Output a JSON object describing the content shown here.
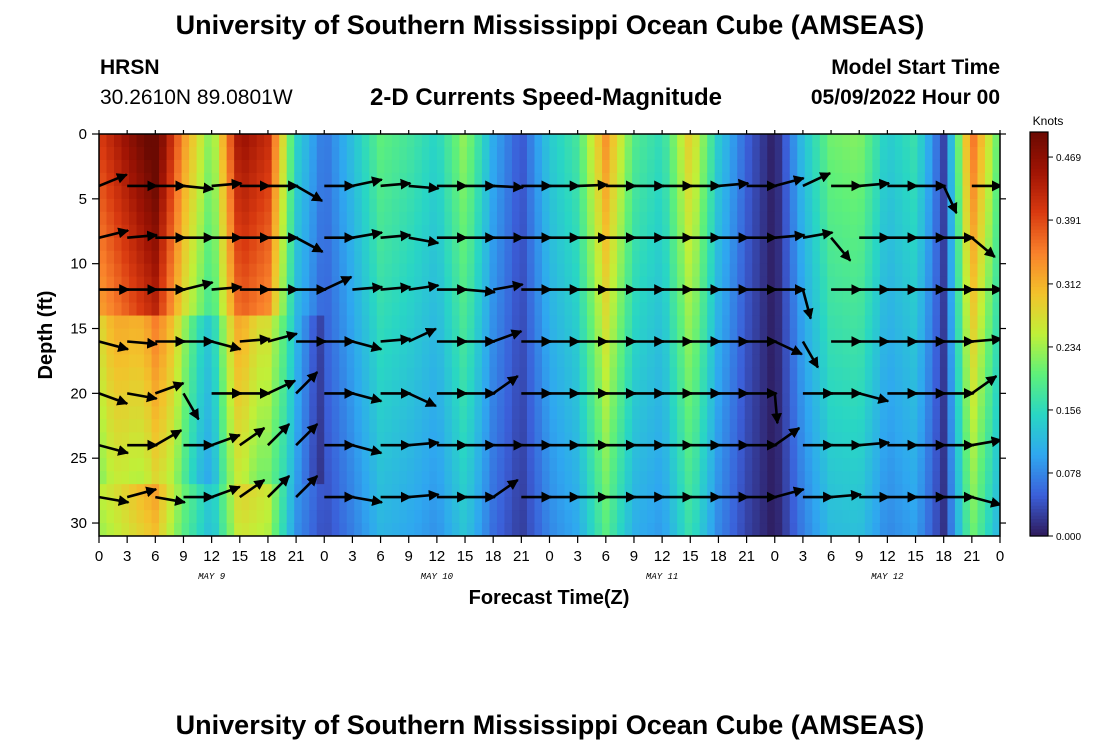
{
  "page": {
    "title": "University of Southern Mississippi Ocean Cube (AMSEAS)",
    "station_name": "HRSN",
    "station_coords": "30.2610N  89.0801W",
    "subtitle": "2-D Currents Speed-Magnitude",
    "model_start_label": "Model Start Time",
    "model_start_value": "05/09/2022 Hour 00",
    "footer_title": "University of Southern Mississippi Ocean Cube (AMSEAS)"
  },
  "chart_data": {
    "type": "heatmap",
    "title": "2-D Currents Speed-Magnitude",
    "xlabel": "Forecast Time(Z)",
    "ylabel": "Depth (ft)",
    "x_range_hours": [
      0,
      96
    ],
    "y_range_ft": [
      0,
      31
    ],
    "x_ticks": [
      {
        "hour": 0,
        "label": "0"
      },
      {
        "hour": 3,
        "label": "3"
      },
      {
        "hour": 6,
        "label": "6"
      },
      {
        "hour": 9,
        "label": "9"
      },
      {
        "hour": 12,
        "label": "12"
      },
      {
        "hour": 15,
        "label": "15"
      },
      {
        "hour": 18,
        "label": "18"
      },
      {
        "hour": 21,
        "label": "21"
      },
      {
        "hour": 24,
        "label": "0"
      },
      {
        "hour": 27,
        "label": "3"
      },
      {
        "hour": 30,
        "label": "6"
      },
      {
        "hour": 33,
        "label": "9"
      },
      {
        "hour": 36,
        "label": "12"
      },
      {
        "hour": 39,
        "label": "15"
      },
      {
        "hour": 42,
        "label": "18"
      },
      {
        "hour": 45,
        "label": "21"
      },
      {
        "hour": 48,
        "label": "0"
      },
      {
        "hour": 51,
        "label": "3"
      },
      {
        "hour": 54,
        "label": "6"
      },
      {
        "hour": 57,
        "label": "9"
      },
      {
        "hour": 60,
        "label": "12"
      },
      {
        "hour": 63,
        "label": "15"
      },
      {
        "hour": 66,
        "label": "18"
      },
      {
        "hour": 69,
        "label": "21"
      },
      {
        "hour": 72,
        "label": "0"
      },
      {
        "hour": 75,
        "label": "3"
      },
      {
        "hour": 78,
        "label": "6"
      },
      {
        "hour": 81,
        "label": "9"
      },
      {
        "hour": 84,
        "label": "12"
      },
      {
        "hour": 87,
        "label": "15"
      },
      {
        "hour": 90,
        "label": "18"
      },
      {
        "hour": 93,
        "label": "21"
      },
      {
        "hour": 96,
        "label": "0"
      }
    ],
    "day_labels": [
      {
        "hour": 12,
        "label": "MAY 9"
      },
      {
        "hour": 36,
        "label": "MAY 10"
      },
      {
        "hour": 60,
        "label": "MAY 11"
      },
      {
        "hour": 84,
        "label": "MAY 12"
      }
    ],
    "y_ticks": [
      0,
      5,
      10,
      15,
      20,
      25,
      30
    ],
    "colorbar": {
      "label": "Knots",
      "range": [
        0,
        0.5
      ],
      "ticks": [
        "0.469",
        "0.391",
        "0.312",
        "0.234",
        "0.156",
        "0.078",
        "0.000"
      ],
      "tick_values": [
        0.469,
        0.391,
        0.312,
        0.234,
        0.156,
        0.078,
        0.0
      ],
      "colors": [
        "#2e1a5b",
        "#3b5fd9",
        "#2fa7f0",
        "#29d6c4",
        "#5ef07a",
        "#c0f038",
        "#f3c22b",
        "#f9812b",
        "#d93a10",
        "#a01404",
        "#6b0a02"
      ]
    },
    "surface_speed_knots": [
      {
        "hour": 0,
        "speed": 0.38
      },
      {
        "hour": 6,
        "speed": 0.5
      },
      {
        "hour": 9,
        "speed": 0.32
      },
      {
        "hour": 12,
        "speed": 0.2
      },
      {
        "hour": 15,
        "speed": 0.44
      },
      {
        "hour": 18,
        "speed": 0.4
      },
      {
        "hour": 21,
        "speed": 0.14
      },
      {
        "hour": 24,
        "speed": 0.06
      },
      {
        "hour": 27,
        "speed": 0.12
      },
      {
        "hour": 30,
        "speed": 0.19
      },
      {
        "hour": 33,
        "speed": 0.17
      },
      {
        "hour": 36,
        "speed": 0.14
      },
      {
        "hour": 39,
        "speed": 0.22
      },
      {
        "hour": 42,
        "speed": 0.1
      },
      {
        "hour": 45,
        "speed": 0.04
      },
      {
        "hour": 48,
        "speed": 0.13
      },
      {
        "hour": 51,
        "speed": 0.17
      },
      {
        "hour": 54,
        "speed": 0.32
      },
      {
        "hour": 57,
        "speed": 0.18
      },
      {
        "hour": 60,
        "speed": 0.15
      },
      {
        "hour": 63,
        "speed": 0.28
      },
      {
        "hour": 66,
        "speed": 0.13
      },
      {
        "hour": 69,
        "speed": 0.05
      },
      {
        "hour": 72,
        "speed": 0.0
      },
      {
        "hour": 75,
        "speed": 0.12
      },
      {
        "hour": 78,
        "speed": 0.2
      },
      {
        "hour": 81,
        "speed": 0.21
      },
      {
        "hour": 84,
        "speed": 0.13
      },
      {
        "hour": 87,
        "speed": 0.16
      },
      {
        "hour": 90,
        "speed": 0.03
      },
      {
        "hour": 93,
        "speed": 0.35
      },
      {
        "hour": 96,
        "speed": 0.18
      }
    ],
    "vector_depths_ft": [
      4,
      8,
      12,
      16,
      20,
      24,
      28
    ],
    "vector_hours": [
      0,
      3,
      6,
      9,
      12,
      15,
      18,
      21,
      24,
      27,
      30,
      33,
      36,
      39,
      42,
      45,
      48,
      51,
      54,
      57,
      60,
      63,
      66,
      69,
      72,
      75,
      78,
      81,
      84,
      87,
      90,
      93,
      96
    ],
    "vector_direction_deg_ccw_from_east": [
      [
        22,
        0,
        0,
        -6,
        5,
        0,
        0,
        -30,
        0,
        12,
        5,
        -5,
        0,
        0,
        -3,
        0,
        0,
        2,
        0,
        0,
        0,
        0,
        5,
        0,
        15,
        25,
        0,
        5,
        0,
        0,
        -65,
        0,
        5
      ],
      [
        14,
        5,
        0,
        0,
        0,
        0,
        0,
        -28,
        0,
        10,
        5,
        -10,
        0,
        0,
        0,
        0,
        0,
        0,
        0,
        0,
        0,
        0,
        0,
        0,
        5,
        10,
        -50,
        0,
        0,
        0,
        0,
        -40,
        0
      ],
      [
        0,
        0,
        0,
        14,
        5,
        0,
        0,
        0,
        25,
        5,
        5,
        8,
        0,
        -5,
        10,
        0,
        0,
        0,
        0,
        0,
        0,
        0,
        0,
        0,
        0,
        -75,
        0,
        0,
        0,
        0,
        0,
        0,
        0
      ],
      [
        -15,
        -5,
        0,
        0,
        -15,
        5,
        15,
        0,
        0,
        -15,
        5,
        25,
        0,
        0,
        20,
        0,
        0,
        0,
        0,
        0,
        0,
        0,
        0,
        0,
        -25,
        -60,
        0,
        0,
        0,
        0,
        0,
        5,
        0
      ],
      [
        -20,
        -10,
        20,
        -60,
        0,
        0,
        25,
        45,
        0,
        -15,
        0,
        -25,
        0,
        0,
        35,
        0,
        0,
        0,
        0,
        0,
        0,
        0,
        0,
        0,
        -85,
        0,
        0,
        -15,
        0,
        0,
        0,
        35,
        0
      ],
      [
        -15,
        0,
        30,
        0,
        20,
        35,
        45,
        45,
        0,
        -15,
        0,
        5,
        0,
        0,
        0,
        0,
        0,
        0,
        0,
        0,
        0,
        0,
        0,
        0,
        35,
        0,
        0,
        5,
        0,
        0,
        0,
        10,
        0
      ],
      [
        -10,
        15,
        -10,
        0,
        20,
        35,
        45,
        45,
        0,
        -10,
        0,
        5,
        0,
        0,
        35,
        0,
        0,
        0,
        0,
        0,
        0,
        0,
        0,
        0,
        15,
        0,
        5,
        0,
        0,
        0,
        0,
        -15,
        15
      ]
    ]
  }
}
